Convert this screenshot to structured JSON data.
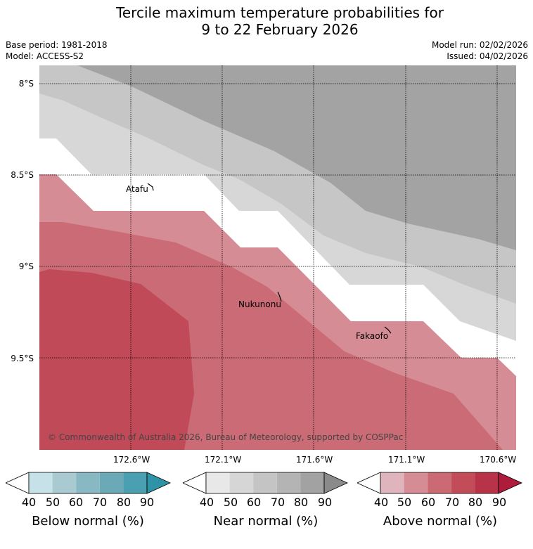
{
  "title_line1": "Tercile maximum temperature probabilities for",
  "title_line2": "9 to 22 February 2026",
  "base_period": "Base period: 1981-2018",
  "model": "Model: ACCESS-S2",
  "model_run": "Model run: 02/02/2026",
  "issued": "Issued: 04/02/2026",
  "copyright": "© Commonwealth of Australia 2026, Bureau of Meteorology, supported by COSPPac",
  "lat_labels": [
    "8°S",
    "8.5°S",
    "9°S",
    "9.5°S"
  ],
  "lon_labels": [
    "172.6°W",
    "172.1°W",
    "171.6°W",
    "171.1°W",
    "170.6°W"
  ],
  "places": [
    "Atafu",
    "Nukunonu",
    "Fakaofo"
  ],
  "colorbars": [
    {
      "title": "Below normal (%)",
      "ticks": [
        "40",
        "50",
        "60",
        "70",
        "80",
        "90"
      ],
      "colors": [
        "#ffffff",
        "#c6e2e8",
        "#a8cad0",
        "#88b8c2",
        "#6aa9b5",
        "#4aa0b0",
        "#2e93a6"
      ]
    },
    {
      "title": "Near normal (%)",
      "ticks": [
        "40",
        "50",
        "60",
        "70",
        "80",
        "90"
      ],
      "colors": [
        "#ffffff",
        "#e8e8e8",
        "#d6d6d6",
        "#c4c4c4",
        "#b4b4b4",
        "#a2a2a2",
        "#8a8a8a"
      ]
    },
    {
      "title": "Above normal (%)",
      "ticks": [
        "40",
        "50",
        "60",
        "70",
        "80",
        "90"
      ],
      "colors": [
        "#ffffff",
        "#e0b4bc",
        "#d68c94",
        "#cc6a74",
        "#c24c58",
        "#b83248",
        "#ae1c3c"
      ]
    }
  ],
  "map_colors": {
    "near_80": "#a3a3a3",
    "near_70": "#c6c6c6",
    "near_60": "#d7d7d7",
    "white": "#ffffff",
    "above_50": "#d68c94",
    "above_60": "#ca6b75",
    "above_70": "#c04a57"
  }
}
